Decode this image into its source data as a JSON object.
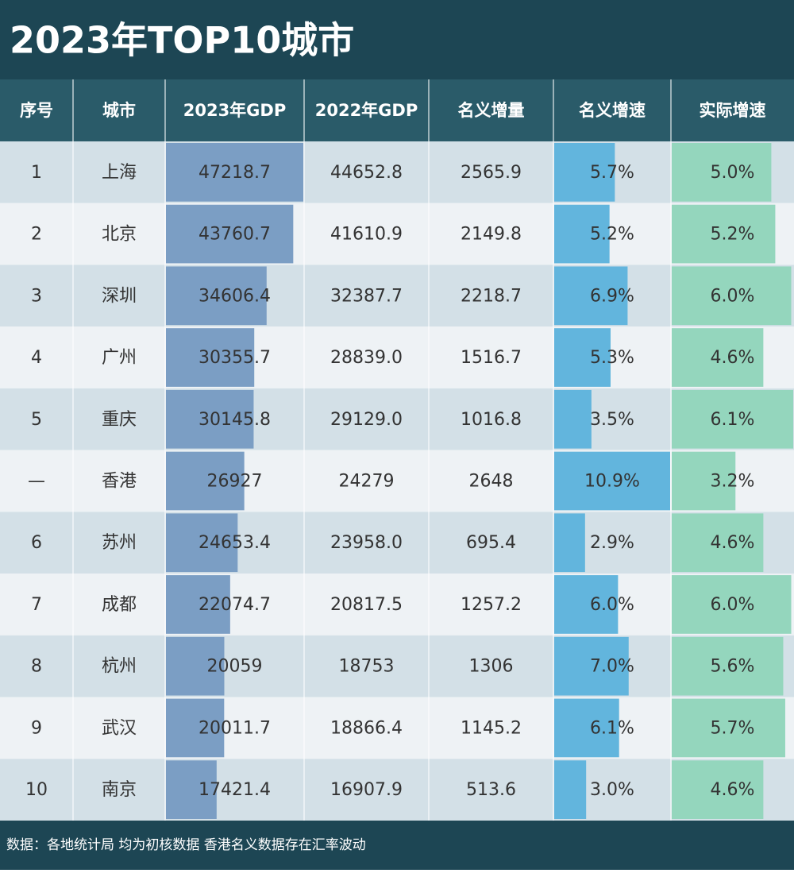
{
  "title": "2023年TOP10城市",
  "table": {
    "headers": [
      "序号",
      "城市",
      "2023年GDP",
      "2022年GDP",
      "名义增量",
      "名义增速",
      "实际增速"
    ],
    "rows": [
      [
        "1",
        "上海",
        "47218.7",
        "44652.8",
        "2565.9",
        "5.7%",
        "5.0%"
      ],
      [
        "2",
        "北京",
        "43760.7",
        "41610.9",
        "2149.8",
        "5.2%",
        "5.2%"
      ],
      [
        "3",
        "深圳",
        "34606.4",
        "32387.7",
        "2218.7",
        "6.9%",
        "6.0%"
      ],
      [
        "4",
        "广州",
        "30355.7",
        "28839.0",
        "1516.7",
        "5.3%",
        "4.6%"
      ],
      [
        "5",
        "重庆",
        "30145.8",
        "29129.0",
        "1016.8",
        "3.5%",
        "6.1%"
      ],
      [
        "—",
        "香港",
        "26927",
        "24279",
        "2648",
        "10.9%",
        "3.2%"
      ],
      [
        "6",
        "苏州",
        "24653.4",
        "23958.0",
        "695.4",
        "2.9%",
        "4.6%"
      ],
      [
        "7",
        "成都",
        "22074.7",
        "20817.5",
        "1257.2",
        "6.0%",
        "6.0%"
      ],
      [
        "8",
        "杭州",
        "20059",
        "18753",
        "1306",
        "7.0%",
        "5.6%"
      ],
      [
        "9",
        "武汉",
        "20011.7",
        "18866.4",
        "1145.2",
        "6.1%",
        "5.7%"
      ],
      [
        "10",
        "南京",
        "17421.4",
        "16907.9",
        "513.6",
        "3.0%",
        "4.6%"
      ]
    ]
  },
  "footer": "数据：各地统计局 均为初核数据 香港名义数据存在汇率波动"
}
